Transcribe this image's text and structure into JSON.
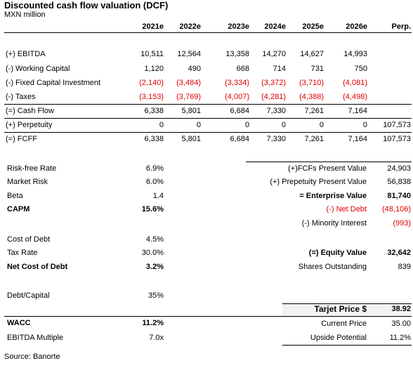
{
  "header": {
    "title": "Discounted cash flow valuation (DCF)",
    "subtitle": "MXN million"
  },
  "table": {
    "columns": [
      "2021e",
      "2022e",
      "2023e",
      "2024e",
      "2025e",
      "2026e",
      "Perp."
    ],
    "rows": [
      {
        "label": "(+) EBITDA",
        "values": [
          "10,511",
          "12,564",
          "13,358",
          "14,270",
          "14,627",
          "14,993"
        ]
      },
      {
        "label": "(-) Working Capital",
        "values": [
          "1,120",
          "490",
          "668",
          "714",
          "731",
          "750"
        ]
      },
      {
        "label": "(-) Fixed Capital Investment",
        "values": [
          "(2,140)",
          "(3,484)",
          "(3,334)",
          "(3,372)",
          "(3,710)",
          "(4,081)"
        ]
      },
      {
        "label": "(-) Taxes",
        "values": [
          "(3,153)",
          "(3,769)",
          "(4,007)",
          "(4,281)",
          "(4,388)",
          "(4,498)"
        ]
      },
      {
        "label": "(=) Cash Flow",
        "values": [
          "6,338",
          "5,801",
          "6,684",
          "7,330",
          "7,261",
          "7,164"
        ]
      },
      {
        "label": "(+) Perpetuity",
        "values": [
          "0",
          "0",
          "0",
          "0",
          "0",
          "0",
          "107,573"
        ]
      },
      {
        "label": "(=) FCFF",
        "values": [
          "6,338",
          "5,801",
          "6,684",
          "7,330",
          "7,261",
          "7,164",
          "107,573"
        ]
      }
    ]
  },
  "left_metrics": [
    {
      "label": "Risk-free Rate",
      "value": "6.9%"
    },
    {
      "label": "Market Risk",
      "value": "6.0%"
    },
    {
      "label": "Beta",
      "value": "1.4"
    },
    {
      "label": "CAPM",
      "value": "15.6%"
    },
    {
      "label": "Cost of Debt",
      "value": "4.5%"
    },
    {
      "label": "Tax Rate",
      "value": "30.0%"
    },
    {
      "label": "Net Cost of Debt",
      "value": "3.2%"
    },
    {
      "label": "Debt/Capital",
      "value": "35%"
    },
    {
      "label": "WACC",
      "value": "11.2%"
    },
    {
      "label": "EBITDA Multiple",
      "value": "7.0x"
    }
  ],
  "right_metrics": [
    {
      "label": "(+)FCFs Present Value",
      "value": "24,903"
    },
    {
      "label": "(+) Prepetuity Present Value",
      "value": "56,838"
    },
    {
      "label": "= Enterprise Value",
      "value": "81,740"
    },
    {
      "label": "(-) Net Debt",
      "value": "(48,106)"
    },
    {
      "label": "(-) Minority Interest",
      "value": "(993)"
    },
    {
      "label": "(=) Equity Value",
      "value": "32,642"
    },
    {
      "label": "Shares Outstanding",
      "value": "839"
    }
  ],
  "price_block": [
    {
      "label": "Tarjet Price $",
      "value": "38.92"
    },
    {
      "label": "Current Price",
      "value": "35.00"
    },
    {
      "label": "Upside Potential",
      "value": "11.2%"
    }
  ],
  "footer": {
    "source": "Source: Banorte"
  }
}
